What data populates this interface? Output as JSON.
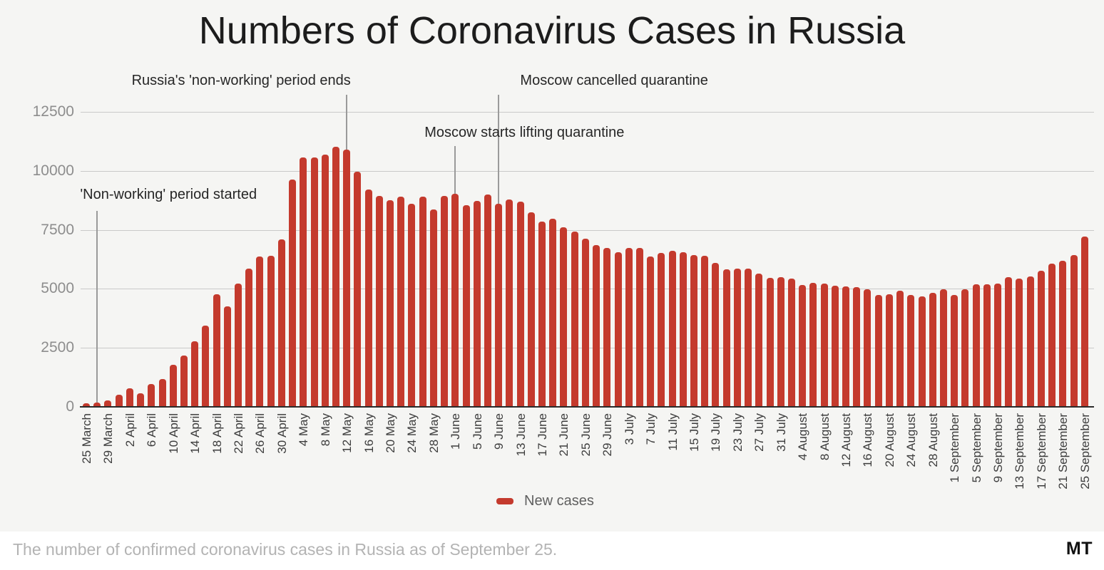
{
  "page": {
    "title": "Numbers of Coronavirus Cases in Russia",
    "footer": {
      "caption": "The number of confirmed coronavirus cases in Russia as of September 25.",
      "logo": "MT"
    }
  },
  "chart_data": {
    "type": "bar",
    "title": "Numbers of Coronavirus Cases in Russia",
    "xlabel": "",
    "ylabel": "",
    "ylim": [
      0,
      12500
    ],
    "yticks": [
      0,
      2500,
      5000,
      7500,
      10000,
      12500
    ],
    "grid": true,
    "legend_position": "bottom",
    "legend_label": "New cases",
    "bar_color": "#c43a2d",
    "x_label_every": 2,
    "x": [
      "25 March",
      "27 March",
      "29 March",
      "31 March",
      "2 April",
      "4 April",
      "6 April",
      "8 April",
      "10 April",
      "12 April",
      "14 April",
      "16 April",
      "18 April",
      "20 April",
      "22 April",
      "24 April",
      "26 April",
      "28 April",
      "30 April",
      "2 May",
      "4 May",
      "6 May",
      "8 May",
      "10 May",
      "12 May",
      "14 May",
      "16 May",
      "18 May",
      "20 May",
      "22 May",
      "24 May",
      "26 May",
      "28 May",
      "30 May",
      "1 June",
      "3 June",
      "5 June",
      "7 June",
      "9 June",
      "11 June",
      "13 June",
      "15 June",
      "17 June",
      "19 June",
      "21 June",
      "23 June",
      "25 June",
      "27 June",
      "29 June",
      "1 July",
      "3 July",
      "5 July",
      "7 July",
      "9 July",
      "11 July",
      "13 July",
      "15 July",
      "17 July",
      "19 July",
      "21 July",
      "23 July",
      "25 July",
      "27 July",
      "29 July",
      "31 July",
      "2 August",
      "4 August",
      "6 August",
      "8 August",
      "10 August",
      "12 August",
      "14 August",
      "16 August",
      "18 August",
      "20 August",
      "22 August",
      "24 August",
      "26 August",
      "28 August",
      "30 August",
      "1 September",
      "3 September",
      "5 September",
      "7 September",
      "9 September",
      "11 September",
      "13 September",
      "15 September",
      "17 September",
      "19 September",
      "21 September",
      "23 September",
      "25 September"
    ],
    "values": [
      163,
      196,
      270,
      500,
      771,
      582,
      954,
      1175,
      1786,
      2186,
      2774,
      3448,
      4785,
      4268,
      5236,
      5849,
      6361,
      6411,
      7099,
      9623,
      10581,
      10559,
      10699,
      11012,
      10899,
      9974,
      9200,
      8926,
      8764,
      8894,
      8599,
      8915,
      8371,
      8952,
      9035,
      8536,
      8726,
      8984,
      8595,
      8779,
      8706,
      8246,
      7843,
      7972,
      7600,
      7425,
      7113,
      6852,
      6719,
      6556,
      6718,
      6736,
      6368,
      6509,
      6611,
      6537,
      6422,
      6406,
      6109,
      5842,
      5848,
      5871,
      5635,
      5475,
      5482,
      5427,
      5159,
      5267,
      5212,
      5118,
      5102,
      5065,
      4969,
      4748,
      4785,
      4921,
      4744,
      4676,
      4829,
      4993,
      4729,
      4995,
      5205,
      5185,
      5218,
      5488,
      5449,
      5529,
      5762,
      6065,
      6196,
      6431,
      7212
    ],
    "annotations": [
      {
        "text": "'Non-working' period started",
        "date": "27 March",
        "text_dx": 100,
        "text_top": 262,
        "line_top": 296
      },
      {
        "text": "Russia's 'non-working' period ends",
        "date": "12 May",
        "text_dx": -148,
        "text_top": 102,
        "line_top": 133
      },
      {
        "text": "Moscow starts lifting quarantine",
        "date": "1 June",
        "text_dx": 97,
        "text_top": 175,
        "line_top": 205
      },
      {
        "text": "Moscow cancelled quarantine",
        "date": "9 June",
        "text_dx": 162,
        "text_top": 102,
        "line_top": 133
      }
    ]
  }
}
